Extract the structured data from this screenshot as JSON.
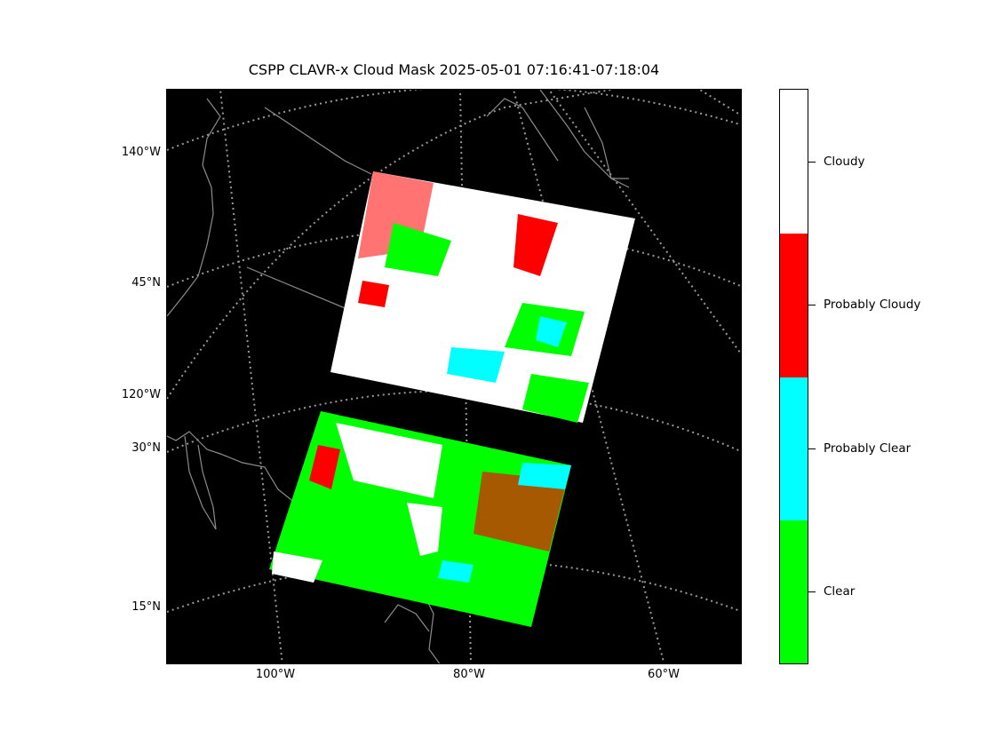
{
  "title": "CSPP CLAVR-x Cloud Mask 2025-05-01 07:16:41-07:18:04",
  "map": {
    "background": "#000000",
    "coastline_color": "#8c8c8c",
    "graticule_color": "#9a9a9a",
    "lat_labels": [
      "140°W",
      "45°N",
      "120°W",
      "30°N",
      "15°N"
    ],
    "lon_labels": [
      "100°W",
      "80°W",
      "60°W"
    ]
  },
  "legend": {
    "categories": [
      {
        "label": "Cloudy",
        "color": "#ffffff"
      },
      {
        "label": "Probably Cloudy",
        "color": "#ff0000"
      },
      {
        "label": "Probably Clear",
        "color": "#00ffff"
      },
      {
        "label": "Clear",
        "color": "#00ff00"
      }
    ]
  }
}
